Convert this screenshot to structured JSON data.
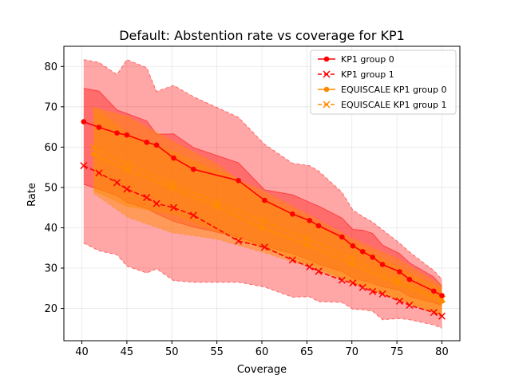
{
  "chart_data": {
    "type": "line",
    "title": "Default: Abstention rate vs coverage for KP1",
    "xlabel": "Coverage",
    "ylabel": "Rate",
    "xlim": [
      38,
      82
    ],
    "ylim": [
      12,
      85
    ],
    "xticks": [
      40,
      45,
      50,
      55,
      60,
      65,
      70,
      75,
      80
    ],
    "yticks": [
      20,
      30,
      40,
      50,
      60,
      70,
      80
    ],
    "grid": true,
    "legend_position": "top-right",
    "series": [
      {
        "name": "KP1 group 0",
        "color": "#ff0000",
        "linestyle": "solid",
        "marker": "dot",
        "x": [
          40.2,
          41.9,
          43.9,
          45.0,
          47.2,
          48.3,
          50.2,
          52.4,
          57.4,
          60.3,
          63.4,
          65.3,
          66.3,
          68.9,
          70.1,
          71.2,
          72.3,
          73.4,
          75.3,
          76.4,
          79.1,
          80.0
        ],
        "y": [
          66.3,
          64.9,
          63.5,
          63.0,
          61.2,
          60.5,
          57.3,
          54.5,
          51.7,
          46.8,
          43.4,
          41.8,
          40.5,
          37.7,
          35.5,
          34.1,
          32.7,
          30.9,
          29.1,
          27.2,
          24.3,
          23.2
        ],
        "band_low": [
          50.8,
          49.5,
          48.0,
          46.3,
          44.8,
          43.5,
          41.6,
          40.2,
          37.7,
          35.5,
          33.6,
          32.0,
          31.0,
          29.2,
          27.6,
          26.9,
          26.2,
          25.4,
          24.5,
          23.0,
          21.4,
          20.8
        ],
        "band_high": [
          74.6,
          73.9,
          69.2,
          68.3,
          66.5,
          63.2,
          63.3,
          59.9,
          56.1,
          49.4,
          48.2,
          46.3,
          45.4,
          42.4,
          39.6,
          39.4,
          38.6,
          35.7,
          33.6,
          31.3,
          27.8,
          25.5
        ]
      },
      {
        "name": "KP1 group 1",
        "color": "#ff0000",
        "linestyle": "dashed",
        "marker": "x",
        "x": [
          40.2,
          41.9,
          43.9,
          45.0,
          47.2,
          48.3,
          50.2,
          52.4,
          57.4,
          60.3,
          63.4,
          65.3,
          66.3,
          68.9,
          70.1,
          71.2,
          72.3,
          73.4,
          75.3,
          76.4,
          79.1,
          80.0
        ],
        "y": [
          55.4,
          53.6,
          51.2,
          49.6,
          47.5,
          46.0,
          45.0,
          43.1,
          36.7,
          35.2,
          32.0,
          30.3,
          29.2,
          27.0,
          26.3,
          25.2,
          24.2,
          23.6,
          21.8,
          20.8,
          19.0,
          18.1
        ],
        "band_low": [
          36.2,
          34.3,
          33.3,
          30.5,
          28.8,
          29.8,
          26.9,
          26.5,
          26.5,
          25.3,
          22.8,
          22.9,
          21.7,
          21.5,
          19.8,
          19.7,
          19.3,
          17.2,
          17.5,
          17.2,
          15.9,
          15.1
        ],
        "band_high": [
          81.7,
          81.0,
          78.0,
          81.7,
          79.7,
          73.8,
          75.3,
          72.5,
          67.4,
          60.7,
          56.0,
          55.4,
          54.1,
          48.8,
          44.4,
          42.8,
          41.4,
          39.5,
          36.2,
          34.0,
          29.4,
          27.2
        ]
      },
      {
        "name": "EQUISCALE KP1 group 0",
        "color": "#ff8c00",
        "linestyle": "solid",
        "marker": "dot",
        "x": [
          41.3,
          45.1,
          50.0,
          55.0,
          60.0,
          65.0,
          70.0,
          75.0,
          80.0
        ],
        "y": [
          58.2,
          54.3,
          49.8,
          45.2,
          40.0,
          35.8,
          31.0,
          26.3,
          21.8
        ],
        "band_low": [
          49.3,
          45.3,
          43.5,
          39.3,
          35.0,
          31.2,
          26.6,
          22.4,
          18.6
        ],
        "band_high": [
          69.8,
          67.5,
          61.5,
          55.8,
          47.5,
          42.2,
          36.3,
          30.4,
          24.7
        ]
      },
      {
        "name": "EQUISCALE KP1 group 1",
        "color": "#ff8c00",
        "linestyle": "dashed",
        "marker": "x",
        "x": [
          41.3,
          45.1,
          50.0,
          55.0,
          60.0,
          65.0,
          70.0,
          75.0,
          80.0
        ],
        "y": [
          59.9,
          55.8,
          51.0,
          46.3,
          41.8,
          37.4,
          32.4,
          27.1,
          22.3
        ],
        "band_low": [
          48.6,
          42.6,
          38.8,
          37.2,
          34.0,
          30.5,
          26.2,
          22.3,
          18.1
        ],
        "band_high": [
          70.0,
          63.4,
          59.0,
          54.3,
          49.3,
          43.5,
          37.4,
          32.4,
          25.7
        ]
      }
    ]
  }
}
